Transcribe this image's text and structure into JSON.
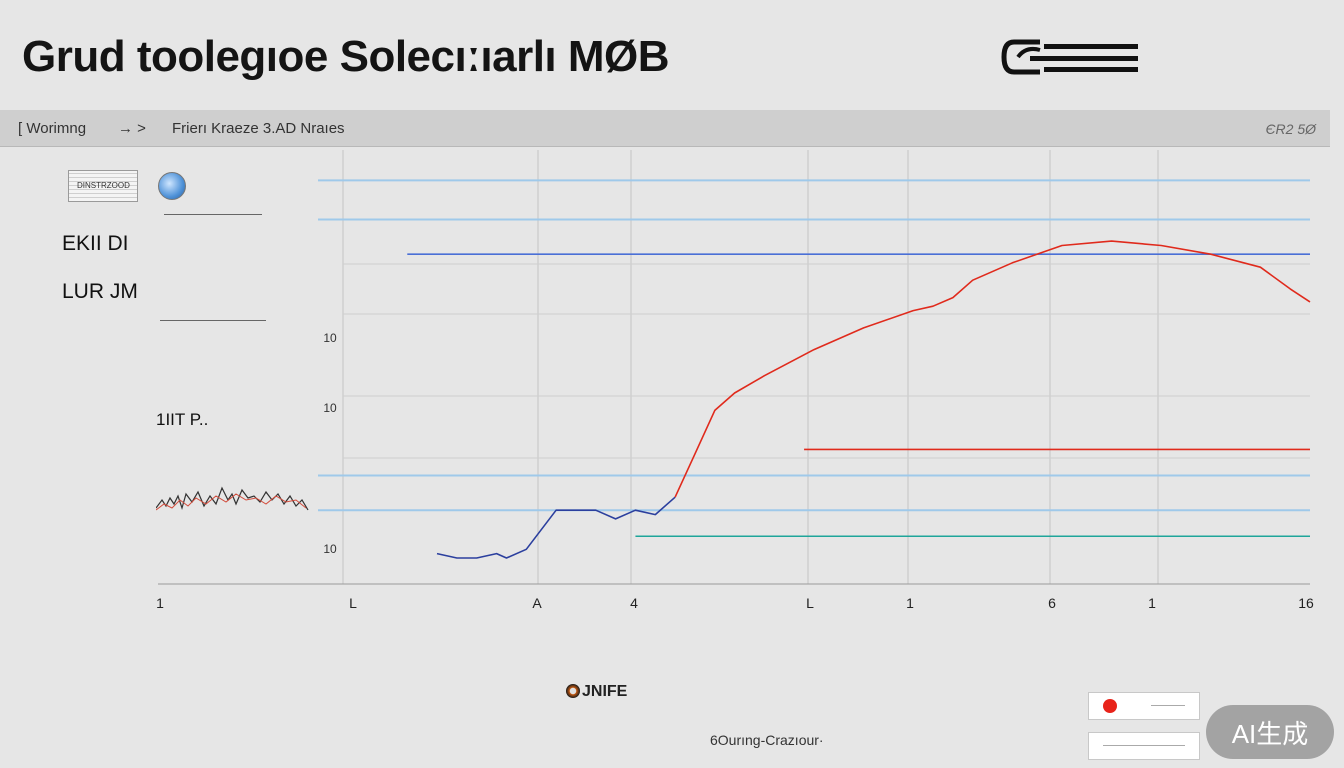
{
  "header": {
    "title": "Grud toolegıoe Solecıːıarlı MØB"
  },
  "toolbar": {
    "home_label": "[ Worimng",
    "separator": "→ >",
    "current_label": "Frierı Kraeze  3.AD Nraıes",
    "code": "ЄR2 5Ø"
  },
  "sidebar": {
    "swatch_label": "DINSTRZOOD",
    "labels": [
      "EKII   DI",
      "LUR   JM",
      "1IIT P.."
    ]
  },
  "chart_data": {
    "type": "line",
    "x_ticks": [
      "1",
      "L",
      "A",
      "4",
      "L",
      "1",
      "6",
      "1",
      "16"
    ],
    "y_ticks": [
      "10",
      "10",
      "10"
    ],
    "xlim": [
      0,
      100
    ],
    "ylim": [
      0,
      100
    ],
    "series": [
      {
        "color": "#2b3f9e",
        "points": [
          [
            12,
            7
          ],
          [
            14,
            6
          ],
          [
            16,
            6
          ],
          [
            18,
            7
          ],
          [
            19,
            6
          ],
          [
            21,
            8
          ],
          [
            23,
            14
          ],
          [
            24,
            17
          ],
          [
            26,
            17
          ],
          [
            28,
            17
          ],
          [
            30,
            15
          ],
          [
            32,
            17
          ],
          [
            34,
            16
          ],
          [
            36,
            20
          ]
        ]
      },
      {
        "color": "#e02a1c",
        "points": [
          [
            36,
            20
          ],
          [
            38,
            30
          ],
          [
            40,
            40
          ],
          [
            42,
            44
          ],
          [
            45,
            48
          ],
          [
            50,
            54
          ],
          [
            55,
            59
          ],
          [
            60,
            63
          ],
          [
            62,
            64
          ],
          [
            64,
            66
          ],
          [
            66,
            70
          ],
          [
            70,
            74
          ],
          [
            75,
            78
          ],
          [
            80,
            79
          ],
          [
            85,
            78
          ],
          [
            90,
            76
          ],
          [
            95,
            73
          ],
          [
            98,
            68
          ],
          [
            100,
            65
          ]
        ]
      }
    ],
    "reference_lines": [
      {
        "color": "#9fc9ea",
        "y": 93,
        "x0": 0,
        "x1": 100
      },
      {
        "color": "#9fc9ea",
        "y": 84,
        "x0": 0,
        "x1": 100
      },
      {
        "color": "#4a6fd6",
        "y": 76,
        "x0": 9,
        "x1": 100
      },
      {
        "color": "#e02a1c",
        "y": 31,
        "x0": 49,
        "x1": 100
      },
      {
        "color": "#9fc9ea",
        "y": 25,
        "x0": 0,
        "x1": 100
      },
      {
        "color": "#9fc9ea",
        "y": 17,
        "x0": 0,
        "x1": 100
      },
      {
        "color": "#1fa59a",
        "y": 11,
        "x0": 32,
        "x1": 100
      }
    ]
  },
  "footer": {
    "brand": "JNIFE",
    "caption": "6Ourıng-Crazıour·"
  },
  "badge": {
    "label": "AI生成"
  }
}
